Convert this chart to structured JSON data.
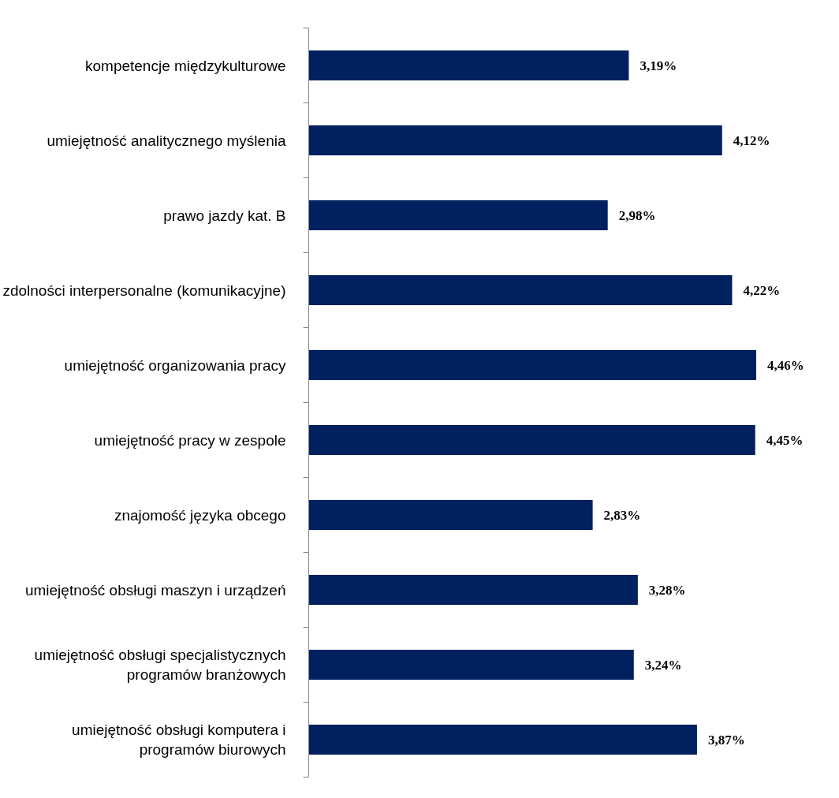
{
  "chart_data": {
    "type": "bar",
    "orientation": "horizontal",
    "color": "#002060",
    "categories": [
      "kompetencje międzykulturowe",
      "umiejętność analitycznego myślenia",
      "prawo jazdy kat. B",
      "zdolności interpersonalne (komunikacyjne)",
      "umiejętność organizowania pracy",
      "umiejętność pracy w zespole",
      "znajomość języka obcego",
      "umiejętność obsługi maszyn i urządzeń",
      "umiejętność obsługi specjalistycznych\nprogramów branżowych",
      "umiejętność obsługi komputera i\nprogramów biurowych"
    ],
    "values": [
      3.19,
      4.12,
      2.98,
      4.22,
      4.46,
      4.45,
      2.83,
      3.28,
      3.24,
      3.87
    ],
    "value_labels": [
      "3,19%",
      "4,12%",
      "2,98%",
      "4,22%",
      "4,46%",
      "4,45%",
      "2,83%",
      "3,28%",
      "3,24%",
      "3,87%"
    ]
  }
}
